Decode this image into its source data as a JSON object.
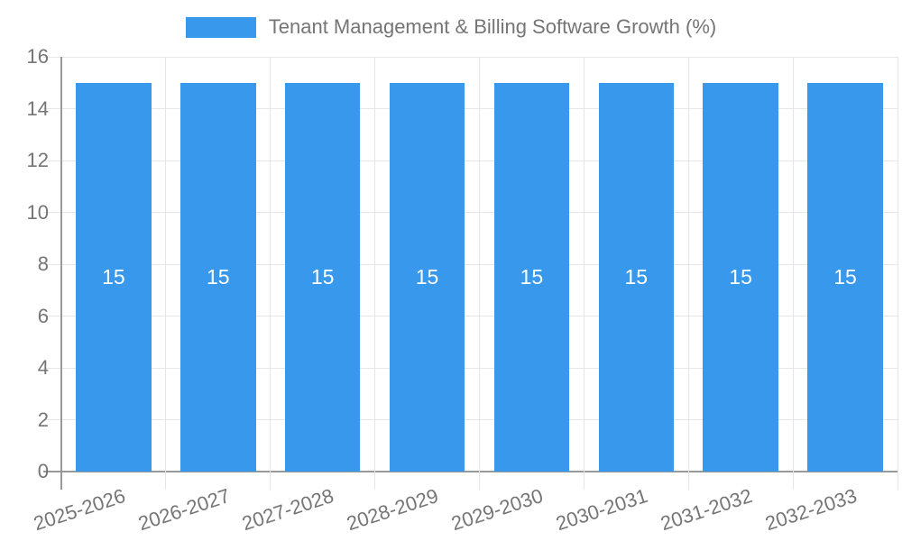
{
  "legend": {
    "label": "Tenant Management & Billing Software Growth (%)"
  },
  "chart_data": {
    "type": "bar",
    "title": "Tenant Management & Billing Software Growth (%)",
    "categories": [
      "2025-2026",
      "2026-2027",
      "2027-2028",
      "2028-2029",
      "2029-2030",
      "2030-2031",
      "2031-2032",
      "2032-2033"
    ],
    "values": [
      15,
      15,
      15,
      15,
      15,
      15,
      15,
      15
    ],
    "xlabel": "",
    "ylabel": "",
    "ylim": [
      0,
      16
    ],
    "ytick_step": 2,
    "grid": true,
    "legend_position": "top-center",
    "bar_width_fraction": 0.72,
    "x_label_rotation_deg": -18,
    "colors": {
      "bar": "#3898ec",
      "value_label": "#ffffff",
      "text": "#757575",
      "grid": "#e6e6e6",
      "axis": "#999999"
    }
  }
}
